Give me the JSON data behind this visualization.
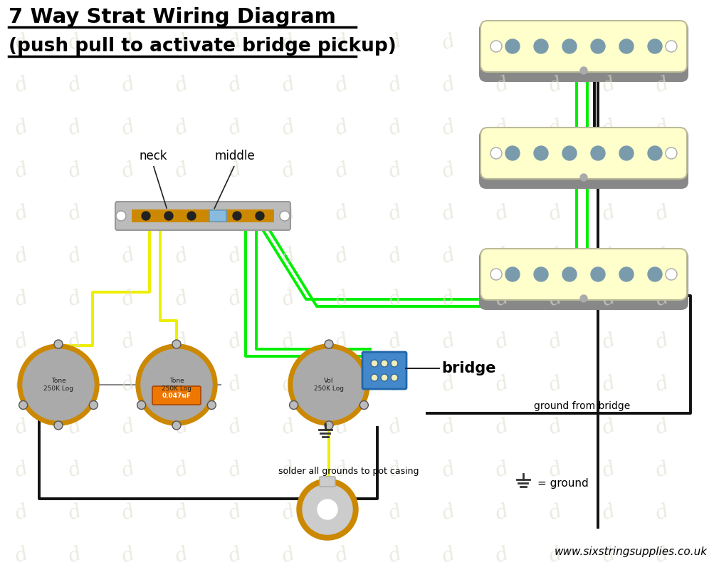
{
  "title_line1": "7 Way Strat Wiring Diagram",
  "title_line2": "(push pull to activate bridge pickup)",
  "bg_color": "#FFFFFF",
  "wm_color": "#DEDED0",
  "pickup_fill": "#FFFFCC",
  "pickup_pole": "#7A9BAC",
  "pickup_base": "#888888",
  "pot_orange": "#CC8800",
  "pot_gray": "#AAAAAA",
  "cap_orange": "#EE7700",
  "push_pull_blue": "#4488CC",
  "jack_orange": "#CC8800",
  "jack_gray": "#CCCCCC",
  "switch_gray": "#AAAAAA",
  "switch_dark": "#888888",
  "wire_yellow": "#EEEE00",
  "wire_green": "#00EE00",
  "wire_black": "#111111",
  "wire_gray": "#888888",
  "text_black": "#000000",
  "website": "www.sixstringsupplies.co.uk",
  "label_neck": "neck",
  "label_middle": "middle",
  "label_bridge": "bridge",
  "label_gnd_bridge": "ground from bridge",
  "label_solder": "solder all grounds to pot casing",
  "label_tone1": "Tone\n250K Log",
  "label_tone2": "Tone\n250K Log",
  "label_vol": "Vol\n250K Log",
  "label_cap": "0.047uF",
  "label_eq_gnd": "= ground"
}
